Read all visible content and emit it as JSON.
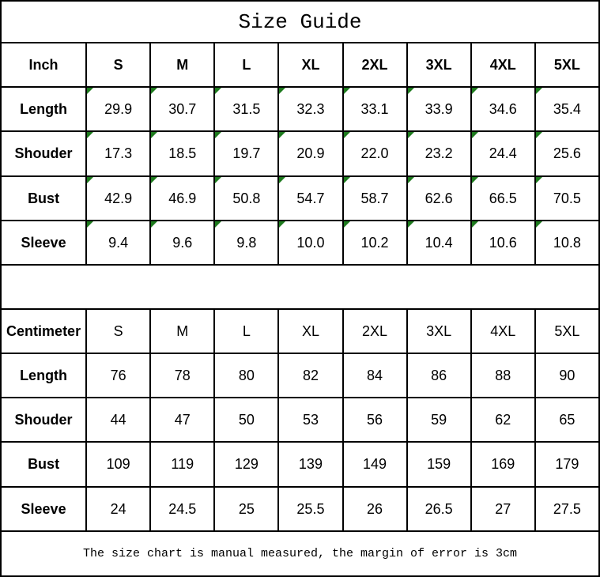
{
  "title": "Size Guide",
  "sizes": [
    "S",
    "M",
    "L",
    "XL",
    "2XL",
    "3XL",
    "4XL",
    "5XL"
  ],
  "inch_table": {
    "unit_label": "Inch",
    "rows": [
      {
        "label": "Length",
        "values": [
          "29.9",
          "30.7",
          "31.5",
          "32.3",
          "33.1",
          "33.9",
          "34.6",
          "35.4"
        ]
      },
      {
        "label": "Shouder",
        "values": [
          "17.3",
          "18.5",
          "19.7",
          "20.9",
          "22.0",
          "23.2",
          "24.4",
          "25.6"
        ]
      },
      {
        "label": "Bust",
        "values": [
          "42.9",
          "46.9",
          "50.8",
          "54.7",
          "58.7",
          "62.6",
          "66.5",
          "70.5"
        ]
      },
      {
        "label": "Sleeve",
        "values": [
          "9.4",
          "9.6",
          "9.8",
          "10.0",
          "10.2",
          "10.4",
          "10.6",
          "10.8"
        ]
      }
    ]
  },
  "cm_table": {
    "unit_label": "Centimeter",
    "rows": [
      {
        "label": "Length",
        "values": [
          "76",
          "78",
          "80",
          "82",
          "84",
          "86",
          "88",
          "90"
        ]
      },
      {
        "label": "Shouder",
        "values": [
          "44",
          "47",
          "50",
          "53",
          "56",
          "59",
          "62",
          "65"
        ]
      },
      {
        "label": "Bust",
        "values": [
          "109",
          "119",
          "129",
          "139",
          "149",
          "159",
          "169",
          "179"
        ]
      },
      {
        "label": "Sleeve",
        "values": [
          "24",
          "24.5",
          "25",
          "25.5",
          "26",
          "26.5",
          "27",
          "27.5"
        ]
      }
    ]
  },
  "footer_note": "The size chart is manual measured, the margin of error is 3cm",
  "icons": {
    "comment_marker": "excel-comment-triangle"
  },
  "colors": {
    "border": "#000000",
    "text": "#000000",
    "background": "#ffffff",
    "comment_marker_green": "#1e7b1e"
  }
}
